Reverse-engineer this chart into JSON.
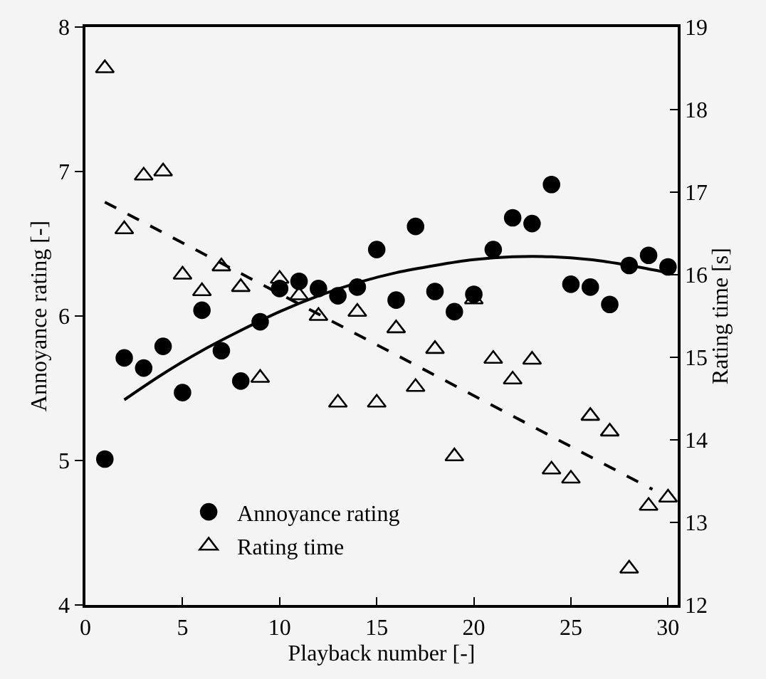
{
  "chart_data": {
    "type": "scatter",
    "xlabel": "Playback number [-]",
    "ylabel": "Annoyance rating [-]",
    "y2label": "Rating time [s]",
    "xlim": [
      0,
      30.5
    ],
    "xticks": [
      0,
      5,
      10,
      15,
      20,
      25,
      30
    ],
    "ylim": [
      4,
      8
    ],
    "yticks": [
      4,
      5,
      6,
      7,
      8
    ],
    "y2lim": [
      12,
      19
    ],
    "y2ticks": [
      12,
      13,
      14,
      15,
      16,
      17,
      18,
      19
    ],
    "grid": false,
    "legend": "bottom left",
    "series": [
      {
        "name": "Annoyance rating",
        "marker": "circle",
        "color": "#000000",
        "x": [
          1,
          2,
          3,
          4,
          5,
          6,
          7,
          8,
          9,
          10,
          11,
          12,
          13,
          14,
          15,
          16,
          17,
          18,
          19,
          20,
          21,
          22,
          23,
          24,
          25,
          26,
          27,
          28,
          29,
          30
        ],
        "values": [
          5.01,
          5.71,
          5.64,
          5.79,
          5.47,
          6.04,
          5.76,
          5.55,
          5.96,
          6.19,
          6.24,
          6.19,
          6.14,
          6.2,
          6.46,
          6.11,
          6.62,
          6.17,
          6.03,
          6.15,
          6.46,
          6.68,
          6.64,
          6.91,
          6.22,
          6.2,
          6.08,
          6.35,
          6.42,
          6.34
        ]
      },
      {
        "name": "Rating time",
        "marker": "triangle",
        "axis": "y2",
        "color": "#000000",
        "x": [
          1,
          2,
          3,
          4,
          5,
          6,
          7,
          8,
          9,
          10,
          11,
          12,
          13,
          14,
          15,
          16,
          17,
          18,
          19,
          20,
          21,
          22,
          23,
          24,
          25,
          26,
          27,
          28,
          29,
          30
        ],
        "values": [
          18.5,
          16.55,
          17.2,
          17.25,
          16.0,
          15.8,
          16.1,
          15.85,
          14.75,
          15.95,
          15.75,
          15.5,
          14.45,
          15.55,
          14.45,
          15.35,
          14.64,
          15.1,
          13.8,
          15.7,
          14.98,
          14.73,
          14.97,
          13.64,
          13.53,
          14.29,
          14.1,
          12.44,
          13.2,
          13.3
        ]
      },
      {
        "type": "line",
        "line_style": "solid",
        "color": "#000000",
        "x": [
          2,
          4,
          6,
          8,
          10,
          12,
          14,
          16,
          18,
          20,
          22,
          24,
          26,
          28,
          30
        ],
        "values": [
          5.42,
          5.6,
          5.76,
          5.9,
          6.03,
          6.14,
          6.23,
          6.3,
          6.35,
          6.39,
          6.41,
          6.41,
          6.39,
          6.35,
          6.3
        ]
      },
      {
        "type": "line",
        "line_style": "dashed",
        "axis": "y2",
        "color": "#000000",
        "x": [
          1,
          29.2
        ],
        "values": [
          16.88,
          13.4
        ]
      }
    ]
  }
}
